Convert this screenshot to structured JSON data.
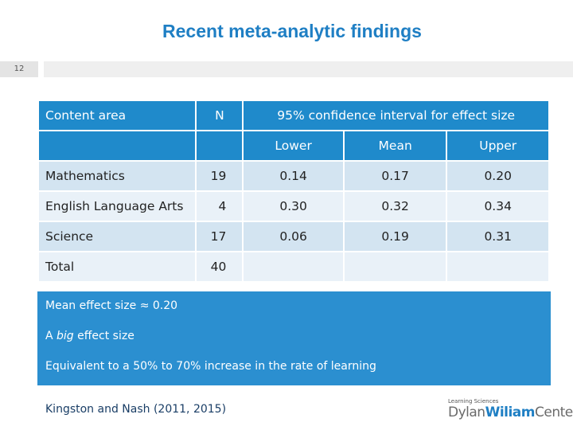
{
  "header": {
    "title": "Recent meta-analytic findings",
    "slide_number": "12"
  },
  "table": {
    "columns": [
      "Content area",
      "N",
      "95% confidence interval for effect size"
    ],
    "subcolumns": [
      "Lower",
      "Mean",
      "Upper"
    ],
    "rows": [
      [
        "Mathematics",
        "19",
        "0.14",
        "0.17",
        "0.20"
      ],
      [
        "English Language Arts",
        "4",
        "0.30",
        "0.32",
        "0.34"
      ],
      [
        "Science",
        "17",
        "0.06",
        "0.19",
        "0.31"
      ],
      [
        "Total",
        "40"
      ]
    ]
  },
  "notes": {
    "line_1": "Mean effect size ≈ 0.20",
    "line_2": {
      "before": "A",
      "emphasis": "big",
      "after": "effect size"
    },
    "line_3": "Equivalent to a 50% to 70% increase in the rate of learning"
  },
  "citation": "Kingston and Nash (2011, 2015)",
  "logo": {
    "tagline": "Learning Sciences",
    "first": "Dylan",
    "middle": "Wiliam",
    "last": "Center"
  }
}
